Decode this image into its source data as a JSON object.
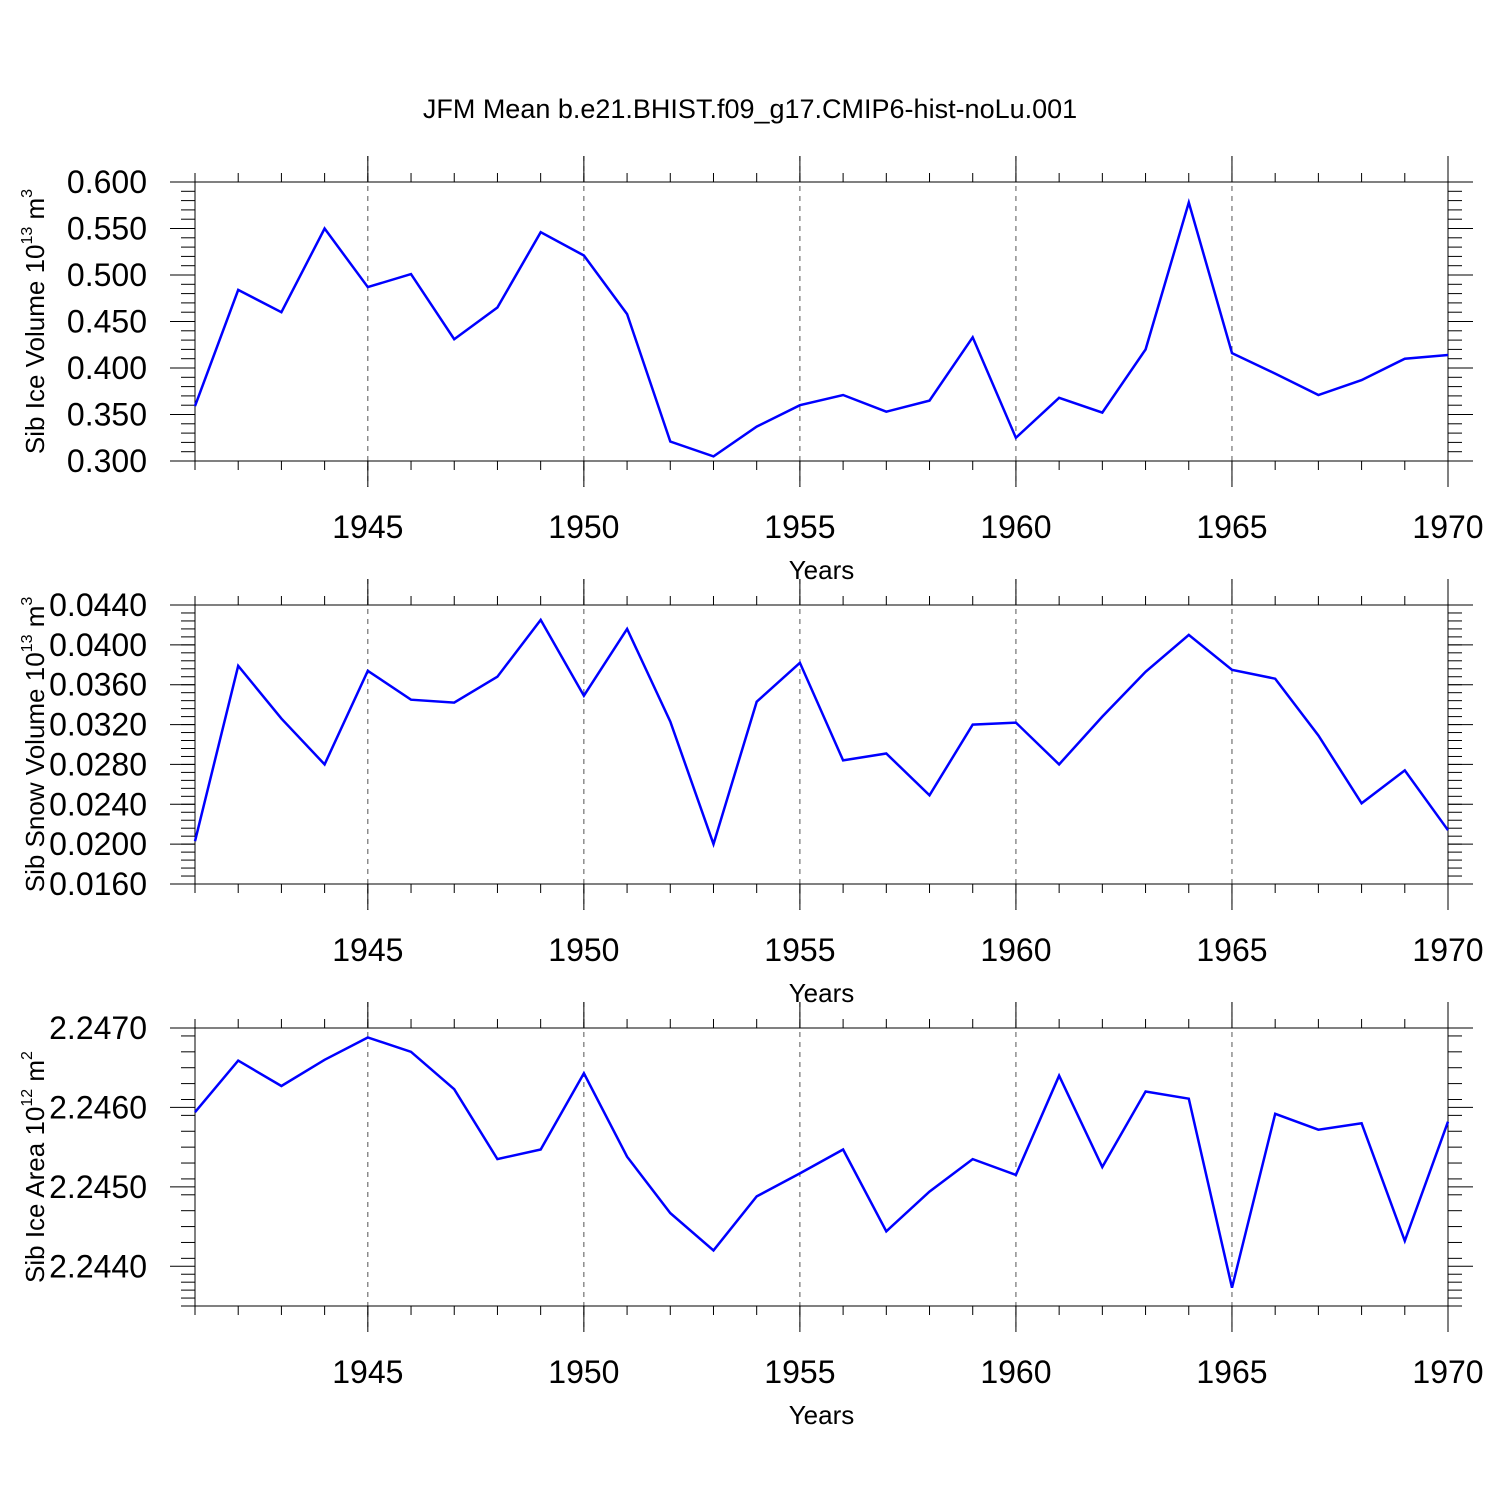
{
  "title": "JFM Mean b.e21.BHIST.f09_g17.CMIP6-hist-noLu.001",
  "colors": {
    "line": "#0000ff",
    "axis": "#000000",
    "grid": "#555555"
  },
  "chart_data": [
    {
      "type": "line",
      "ylabel": {
        "text": "Sib Ice Volume 10",
        "exponent": "13",
        "unit": " m",
        "unit_exponent": "3"
      },
      "xlabel": "Years",
      "xlim": [
        1941,
        1970
      ],
      "ylim": [
        0.3,
        0.6
      ],
      "yticks": [
        "0.300",
        "0.350",
        "0.400",
        "0.450",
        "0.500",
        "0.550",
        "0.600"
      ],
      "xticks": [
        "1945",
        "1950",
        "1955",
        "1960",
        "1965",
        "1970"
      ],
      "gridlines_x": [
        1945,
        1950,
        1955,
        1960,
        1965
      ],
      "series": [
        {
          "name": "Sib Ice Volume",
          "x": [
            1941,
            1942,
            1943,
            1944,
            1945,
            1946,
            1947,
            1948,
            1949,
            1950,
            1951,
            1952,
            1953,
            1954,
            1955,
            1956,
            1957,
            1958,
            1959,
            1960,
            1961,
            1962,
            1963,
            1964,
            1965,
            1966,
            1967,
            1968,
            1969,
            1970
          ],
          "values": [
            0.359,
            0.484,
            0.46,
            0.55,
            0.487,
            0.501,
            0.431,
            0.465,
            0.546,
            0.521,
            0.458,
            0.321,
            0.305,
            0.337,
            0.36,
            0.371,
            0.353,
            0.365,
            0.433,
            0.325,
            0.368,
            0.352,
            0.42,
            0.578,
            0.416,
            0.394,
            0.371,
            0.387,
            0.41,
            0.414
          ]
        }
      ]
    },
    {
      "type": "line",
      "ylabel": {
        "text": "Sib Snow Volume 10",
        "exponent": "13",
        "unit": " m",
        "unit_exponent": "3"
      },
      "xlabel": "Years",
      "xlim": [
        1941,
        1970
      ],
      "ylim": [
        0.016,
        0.044
      ],
      "yticks": [
        "0.0160",
        "0.0200",
        "0.0240",
        "0.0280",
        "0.0320",
        "0.0360",
        "0.0400",
        "0.0440"
      ],
      "xticks": [
        "1945",
        "1950",
        "1955",
        "1960",
        "1965",
        "1970"
      ],
      "gridlines_x": [
        1945,
        1950,
        1955,
        1960,
        1965
      ],
      "series": [
        {
          "name": "Sib Snow Volume",
          "x": [
            1941,
            1942,
            1943,
            1944,
            1945,
            1946,
            1947,
            1948,
            1949,
            1950,
            1951,
            1952,
            1953,
            1954,
            1955,
            1956,
            1957,
            1958,
            1959,
            1960,
            1961,
            1962,
            1963,
            1964,
            1965,
            1966,
            1967,
            1968,
            1969,
            1970
          ],
          "values": [
            0.0203,
            0.0379,
            0.0326,
            0.028,
            0.0374,
            0.0345,
            0.0342,
            0.0368,
            0.0425,
            0.0349,
            0.0416,
            0.0323,
            0.02,
            0.0343,
            0.0382,
            0.0284,
            0.0291,
            0.0249,
            0.032,
            0.0322,
            0.028,
            0.0328,
            0.0373,
            0.041,
            0.0375,
            0.0366,
            0.0309,
            0.0241,
            0.0274,
            0.0214
          ]
        }
      ]
    },
    {
      "type": "line",
      "ylabel": {
        "text": "Sib Ice Area 10",
        "exponent": "12",
        "unit": " m",
        "unit_exponent": "2"
      },
      "xlabel": "Years",
      "xlim": [
        1941,
        1970
      ],
      "ylim": [
        2.2435,
        2.247
      ],
      "yticks": [
        "2.2440",
        "2.2450",
        "2.2460",
        "2.2470"
      ],
      "xticks": [
        "1945",
        "1950",
        "1955",
        "1960",
        "1965",
        "1970"
      ],
      "gridlines_x": [
        1945,
        1950,
        1955,
        1960,
        1965
      ],
      "series": [
        {
          "name": "Sib Ice Area",
          "x": [
            1941,
            1942,
            1943,
            1944,
            1945,
            1946,
            1947,
            1948,
            1949,
            1950,
            1951,
            1952,
            1953,
            1954,
            1955,
            1956,
            1957,
            1958,
            1959,
            1960,
            1961,
            1962,
            1963,
            1964,
            1965,
            1966,
            1967,
            1968,
            1969,
            1970
          ],
          "values": [
            2.24594,
            2.24659,
            2.24627,
            2.2466,
            2.24688,
            2.2467,
            2.24623,
            2.24535,
            2.24547,
            2.24643,
            2.24538,
            2.24467,
            2.2442,
            2.24488,
            2.24517,
            2.24547,
            2.24444,
            2.24494,
            2.24535,
            2.24515,
            2.2464,
            2.24525,
            2.2462,
            2.24611,
            2.24373,
            2.24592,
            2.24572,
            2.2458,
            2.24432,
            2.24582
          ]
        }
      ]
    }
  ]
}
